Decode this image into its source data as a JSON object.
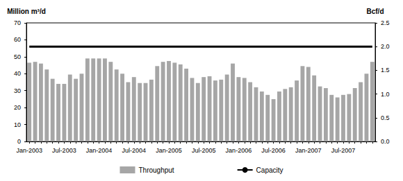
{
  "chart_data": {
    "type": "bar",
    "y_label": "Million m³/d",
    "y2_label": "Bcf/d",
    "categories": [
      "Jan-2003",
      null,
      null,
      null,
      null,
      null,
      "Jul-2003",
      null,
      null,
      null,
      null,
      null,
      "Jan-2004",
      null,
      null,
      null,
      null,
      null,
      "Jul-2004",
      null,
      null,
      null,
      null,
      null,
      "Jan-2005",
      null,
      null,
      null,
      null,
      null,
      "Jul-2005",
      null,
      null,
      null,
      null,
      null,
      "Jan-2006",
      null,
      null,
      null,
      null,
      null,
      "Jul-2006",
      null,
      null,
      null,
      null,
      null,
      "Jan-2007",
      null,
      null,
      null,
      null,
      null,
      "Jul-2007",
      null,
      null,
      null,
      null,
      null
    ],
    "series": [
      {
        "name": "Throughput",
        "type": "bar",
        "color": "#a6a6a6",
        "values": [
          46.5,
          47,
          46,
          42.5,
          37,
          34,
          34,
          39.5,
          37,
          40,
          49,
          49,
          49,
          49,
          47,
          42.5,
          40,
          35,
          38,
          34.5,
          34.5,
          36.5,
          44.5,
          47,
          47.5,
          46.5,
          45.5,
          43,
          37.5,
          34.5,
          38,
          38.5,
          36,
          36.5,
          39.5,
          46,
          38,
          37.5,
          35,
          32,
          29.5,
          27.5,
          25,
          29.5,
          31,
          32,
          36,
          44.5,
          44,
          39,
          32.5,
          31.5,
          27.5,
          26,
          27.5,
          28,
          31.5,
          35,
          40,
          47
        ]
      },
      {
        "name": "Capacity",
        "type": "line",
        "axis": "y2",
        "color": "#000000",
        "values": [
          2,
          2,
          2,
          2,
          2,
          2,
          2,
          2,
          2,
          2,
          2,
          2,
          2,
          2,
          2,
          2,
          2,
          2,
          2,
          2,
          2,
          2,
          2,
          2,
          2,
          2,
          2,
          2,
          2,
          2,
          2,
          2,
          2,
          2,
          2,
          2,
          2,
          2,
          2,
          2,
          2,
          2,
          2,
          2,
          2,
          2,
          2,
          2,
          2,
          2,
          2,
          2,
          2,
          2,
          2,
          2,
          2,
          2,
          2,
          2
        ]
      }
    ],
    "ylim": [
      0,
      70
    ],
    "yticks": [
      0,
      10,
      20,
      30,
      40,
      50,
      60,
      70
    ],
    "y2lim": [
      0,
      2.5
    ],
    "y2ticks": [
      {
        "value": 0,
        "label": "0.0"
      },
      0.5,
      {
        "value": 1,
        "label": "1.0"
      },
      1.5,
      {
        "value": 2,
        "label": "2.0"
      },
      2.5
    ],
    "grid": false,
    "legend": "bottom"
  }
}
